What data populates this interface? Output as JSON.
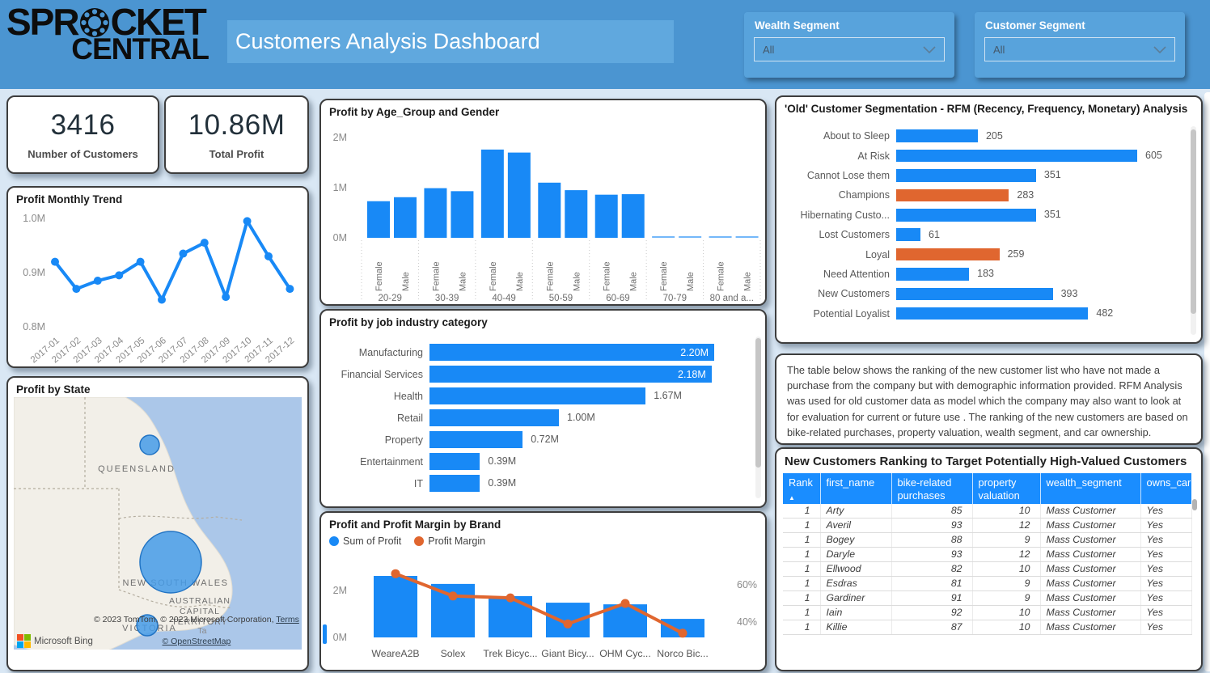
{
  "header": {
    "logo": {
      "line1_pre": "SPR",
      "line1_post": "CKET",
      "line2": "CENTRAL"
    },
    "title": "Customers Analysis Dashboard",
    "slicers": [
      {
        "label": "Wealth Segment",
        "value": "All"
      },
      {
        "label": "Customer Segment",
        "value": "All"
      }
    ]
  },
  "kpis": [
    {
      "value": "3416",
      "label": "Number of Customers"
    },
    {
      "value": "10.86M",
      "label": "Total Profit"
    }
  ],
  "map": {
    "title": "Profit by State",
    "state_labels": {
      "queensland": "QUEENSLAND",
      "new_south_wales": "NEW SOUTH WALES",
      "act_line1": "AUSTRALIAN",
      "act_line2": "CAPITAL",
      "act_line3": "TERRITORY",
      "victoria": "VICTORIA",
      "truncated_right": "Ta"
    },
    "bubbles": [
      {
        "state": "Queensland",
        "size": "small"
      },
      {
        "state": "New South Wales",
        "size": "large"
      },
      {
        "state": "Victoria",
        "size": "small"
      }
    ],
    "attribution": {
      "provider": "Microsoft Bing",
      "line1": "© 2023 TomTom, © 2023 Microsoft Corporation,",
      "terms_link": "Terms",
      "line2": "© OpenStreetMap"
    }
  },
  "chart_data": [
    {
      "id": "monthly_trend",
      "type": "line",
      "title": "Profit Monthly Trend",
      "x": [
        "2017-01",
        "2017-02",
        "2017-03",
        "2017-04",
        "2017-05",
        "2017-06",
        "2017-07",
        "2017-08",
        "2017-09",
        "2017-10",
        "2017-11",
        "2017-12"
      ],
      "values": [
        0.92,
        0.87,
        0.885,
        0.895,
        0.92,
        0.85,
        0.935,
        0.955,
        0.855,
        0.995,
        0.93,
        0.87
      ],
      "unit": "M",
      "ylim": [
        0.8,
        1.0
      ],
      "yticks": [
        1.0,
        0.9,
        0.8
      ],
      "ytick_labels": [
        "1.0M",
        "0.9M",
        "0.8M"
      ]
    },
    {
      "id": "age_gender",
      "type": "bar",
      "title": "Profit by Age_Group and Gender",
      "groups": [
        "20-29",
        "30-39",
        "40-49",
        "50-59",
        "60-69",
        "70-79",
        "80 and a..."
      ],
      "series_labels": [
        "Female",
        "Male"
      ],
      "values": [
        [
          0.73,
          0.81
        ],
        [
          0.99,
          0.93
        ],
        [
          1.76,
          1.7
        ],
        [
          1.1,
          0.95
        ],
        [
          0.86,
          0.87
        ],
        [
          0.03,
          0.02
        ],
        [
          0.02,
          0.02
        ]
      ],
      "unit": "M",
      "ylim": [
        0,
        2
      ],
      "ytick_labels": [
        "2M",
        "1M",
        "0M"
      ]
    },
    {
      "id": "job_industry",
      "type": "bar-horizontal",
      "title": "Profit by job industry category",
      "categories": [
        "Manufacturing",
        "Financial Services",
        "Health",
        "Retail",
        "Property",
        "Entertainment",
        "IT"
      ],
      "values": [
        2.2,
        2.18,
        1.67,
        1.0,
        0.72,
        0.39,
        0.39
      ],
      "value_labels": [
        "2.20M",
        "2.18M",
        "1.67M",
        "1.00M",
        "0.72M",
        "0.39M",
        "0.39M"
      ],
      "label_inside": [
        true,
        true,
        false,
        false,
        false,
        false,
        false
      ],
      "xmax": 2.2
    },
    {
      "id": "brand_combo",
      "type": "bar+line",
      "title": "Profit and Profit Margin by Brand",
      "legend": [
        "Sum of Profit",
        "Profit Margin"
      ],
      "categories": [
        "WeareA2B",
        "Solex",
        "Trek Bicyc...",
        "Giant Bicy...",
        "OHM Cyc...",
        "Norco Bic..."
      ],
      "bar_values_M": [
        2.62,
        2.28,
        1.76,
        1.48,
        1.41,
        0.79
      ],
      "line_values_pct": [
        66,
        54,
        53,
        39,
        50,
        34
      ],
      "left_tick_labels": [
        "2M",
        "0M"
      ],
      "right_tick_labels": [
        "60%",
        "40%"
      ]
    },
    {
      "id": "rfm",
      "type": "bar-horizontal",
      "title": "'Old' Customer Segmentation - RFM (Recency, Frequency, Monetary) Analysis",
      "categories": [
        "About to Sleep",
        "At Risk",
        "Cannot Lose them",
        "Champions",
        "Hibernating Custo...",
        "Lost Customers",
        "Loyal",
        "Need Attention",
        "New Customers",
        "Potential Loyalist"
      ],
      "values": [
        205,
        605,
        351,
        283,
        351,
        61,
        259,
        183,
        393,
        482
      ],
      "bar_colors": [
        "blue",
        "blue",
        "blue",
        "orange",
        "blue",
        "blue",
        "orange",
        "blue",
        "blue",
        "blue"
      ],
      "xmax": 605
    }
  ],
  "note": {
    "text": "The table below shows the ranking of the new customer list who have not made a purchase from the company but with demographic information provided. RFM Analysis was used for old customer data as model which the company may also want to look at for evaluation for current or future use . The ranking of the new customers are based on bike-related purchases, property valuation, wealth segment, and car ownership."
  },
  "table": {
    "title": "New Customers Ranking to Target Potentially High-Valued Customers",
    "columns": [
      "Rank",
      "first_name",
      "bike-related purchases",
      "property valuation",
      "wealth_segment",
      "owns_car"
    ],
    "sorted_column": "Rank",
    "rows": [
      [
        "1",
        "Arty",
        "85",
        "10",
        "Mass Customer",
        "Yes"
      ],
      [
        "1",
        "Averil",
        "93",
        "12",
        "Mass Customer",
        "Yes"
      ],
      [
        "1",
        "Bogey",
        "88",
        "9",
        "Mass Customer",
        "Yes"
      ],
      [
        "1",
        "Daryle",
        "93",
        "12",
        "Mass Customer",
        "Yes"
      ],
      [
        "1",
        "Ellwood",
        "82",
        "10",
        "Mass Customer",
        "Yes"
      ],
      [
        "1",
        "Esdras",
        "81",
        "9",
        "Mass Customer",
        "Yes"
      ],
      [
        "1",
        "Gardiner",
        "91",
        "9",
        "Mass Customer",
        "Yes"
      ],
      [
        "1",
        "Iain",
        "92",
        "10",
        "Mass Customer",
        "Yes"
      ],
      [
        "1",
        "Killie",
        "87",
        "10",
        "Mass Customer",
        "Yes"
      ]
    ]
  },
  "colors": {
    "header_bg": "#4B95D1",
    "title_strip_bg": "#60A8DE",
    "slicer_bg": "#58A3DC",
    "body_bg": "#D9E7F4",
    "bar_blue": "#1889F6",
    "accent_orange": "#E0662F",
    "table_header_bg": "#1A8DFF",
    "map_water": "#ABC7E9",
    "map_land": "#F2EFE8"
  }
}
